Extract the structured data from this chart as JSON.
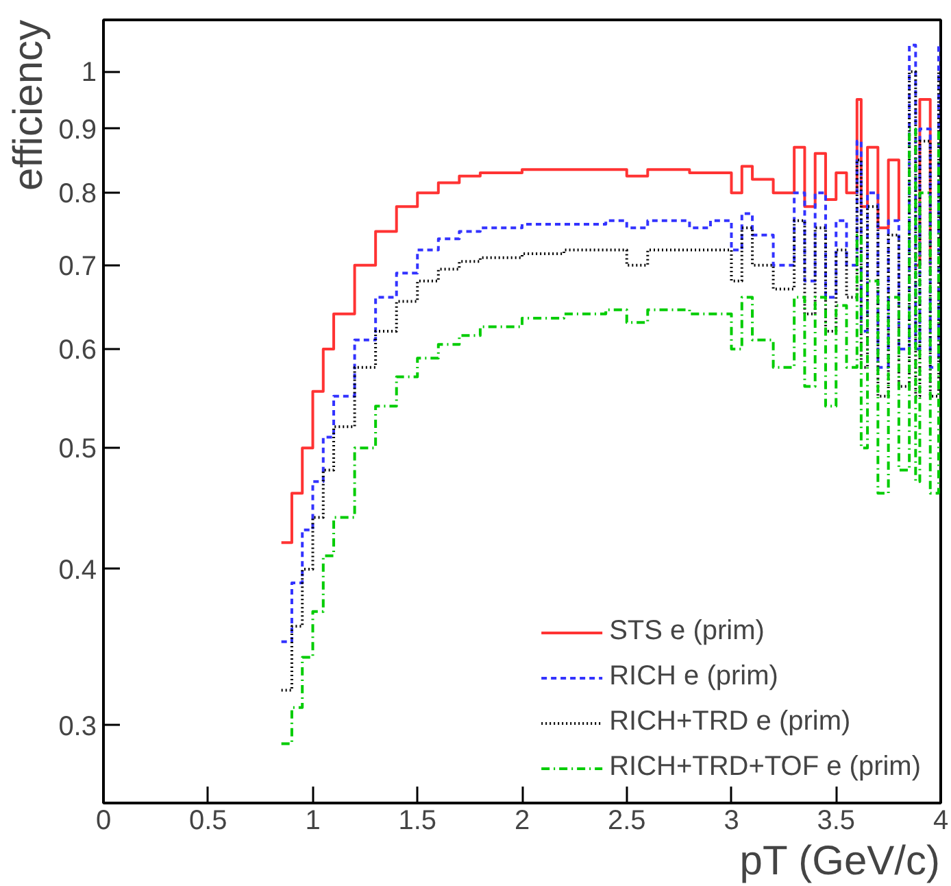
{
  "chart_data": {
    "type": "step",
    "xlabel": "pT (GeV/c)",
    "ylabel": "efficiency",
    "log": true,
    "grid": false,
    "legend": "bottom right",
    "xlim": [
      0,
      4
    ],
    "xticks": [
      0,
      0.5,
      1,
      1.5,
      2,
      2.5,
      3,
      3.5,
      4
    ],
    "ylim": [
      0.26,
      1.1
    ],
    "yticks": [
      0.3,
      0.4,
      0.5,
      0.6,
      0.7,
      0.8,
      0.9,
      1
    ],
    "series": [
      {
        "name": "STS e (prim)",
        "color": "#ff3333",
        "line_style": "solid",
        "x": [
          0.85,
          0.9,
          0.95,
          1.0,
          1.05,
          1.1,
          1.2,
          1.3,
          1.4,
          1.5,
          1.6,
          1.7,
          1.8,
          2.0,
          2.2,
          2.4,
          2.5,
          2.6,
          2.8,
          2.9,
          3.0,
          3.05,
          3.1,
          3.2,
          3.3,
          3.35,
          3.4,
          3.45,
          3.5,
          3.55,
          3.6,
          3.62,
          3.65,
          3.7,
          3.75,
          3.8,
          3.85,
          3.88,
          3.9,
          3.95
        ],
        "values": [
          0.42,
          0.46,
          0.5,
          0.555,
          0.6,
          0.64,
          0.7,
          0.745,
          0.78,
          0.8,
          0.815,
          0.825,
          0.83,
          0.835,
          0.835,
          0.835,
          0.825,
          0.835,
          0.83,
          0.83,
          0.8,
          0.84,
          0.82,
          0.8,
          0.87,
          0.78,
          0.86,
          0.79,
          0.83,
          0.8,
          0.95,
          0.78,
          0.87,
          0.75,
          0.85,
          0.76,
          null,
          0.7,
          0.95,
          0.7
        ]
      },
      {
        "name": "RICH e (prim)",
        "color": "#3333ff",
        "line_style": "dashed",
        "x": [
          0.85,
          0.9,
          0.95,
          1.0,
          1.05,
          1.1,
          1.2,
          1.3,
          1.4,
          1.5,
          1.6,
          1.7,
          1.8,
          2.0,
          2.2,
          2.4,
          2.5,
          2.6,
          2.8,
          2.9,
          3.0,
          3.05,
          3.1,
          3.2,
          3.3,
          3.35,
          3.4,
          3.45,
          3.5,
          3.55,
          3.6,
          3.62,
          3.65,
          3.7,
          3.75,
          3.8,
          3.85,
          3.88,
          3.9,
          3.95,
          3.99
        ],
        "values": [
          0.35,
          0.39,
          0.43,
          0.47,
          0.51,
          0.55,
          0.61,
          0.66,
          0.69,
          0.72,
          0.735,
          0.745,
          0.75,
          0.755,
          0.755,
          0.76,
          0.75,
          0.76,
          0.75,
          0.76,
          0.72,
          0.77,
          0.74,
          0.7,
          0.8,
          0.68,
          0.8,
          0.66,
          0.76,
          0.7,
          0.88,
          0.62,
          0.8,
          0.58,
          0.76,
          0.6,
          1.05,
          0.6,
          0.9,
          0.58,
          1.05
        ]
      },
      {
        "name": "RICH+TRD e (prim)",
        "color": "#000000",
        "line_style": "dotted",
        "x": [
          0.85,
          0.9,
          0.95,
          1.0,
          1.05,
          1.1,
          1.2,
          1.3,
          1.4,
          1.5,
          1.6,
          1.7,
          1.8,
          2.0,
          2.2,
          2.4,
          2.5,
          2.6,
          2.8,
          2.9,
          3.0,
          3.05,
          3.1,
          3.2,
          3.3,
          3.35,
          3.4,
          3.45,
          3.5,
          3.55,
          3.6,
          3.62,
          3.65,
          3.7,
          3.75,
          3.8,
          3.85,
          3.88,
          3.9,
          3.95,
          3.99
        ],
        "values": [
          0.32,
          0.36,
          0.4,
          0.44,
          0.48,
          0.52,
          0.58,
          0.62,
          0.655,
          0.68,
          0.695,
          0.705,
          0.71,
          0.715,
          0.72,
          0.72,
          0.7,
          0.72,
          0.72,
          0.72,
          0.68,
          0.75,
          0.7,
          0.67,
          0.76,
          0.64,
          0.75,
          0.62,
          0.72,
          0.66,
          0.85,
          0.58,
          0.78,
          0.55,
          0.74,
          0.56,
          1.0,
          0.55,
          0.88,
          0.55,
          1.0
        ]
      },
      {
        "name": "RICH+TRD+TOF e (prim)",
        "color": "#00cc00",
        "line_style": "dashdot",
        "x": [
          0.85,
          0.9,
          0.95,
          1.0,
          1.05,
          1.1,
          1.2,
          1.3,
          1.4,
          1.5,
          1.6,
          1.7,
          1.8,
          2.0,
          2.2,
          2.4,
          2.5,
          2.6,
          2.8,
          2.9,
          3.0,
          3.05,
          3.1,
          3.2,
          3.3,
          3.35,
          3.4,
          3.45,
          3.5,
          3.55,
          3.6,
          3.62,
          3.65,
          3.7,
          3.75,
          3.8,
          3.85,
          3.88,
          3.9,
          3.95,
          3.99
        ],
        "values": [
          0.29,
          0.31,
          0.34,
          0.37,
          0.41,
          0.44,
          0.5,
          0.54,
          0.57,
          0.59,
          0.605,
          0.615,
          0.625,
          0.635,
          0.64,
          0.645,
          0.63,
          0.645,
          0.64,
          0.64,
          0.6,
          0.66,
          0.61,
          0.58,
          0.66,
          0.56,
          0.66,
          0.54,
          0.65,
          0.58,
          0.74,
          0.5,
          0.68,
          0.46,
          0.66,
          0.48,
          0.9,
          0.47,
          0.8,
          0.46,
          0.9
        ]
      }
    ]
  }
}
